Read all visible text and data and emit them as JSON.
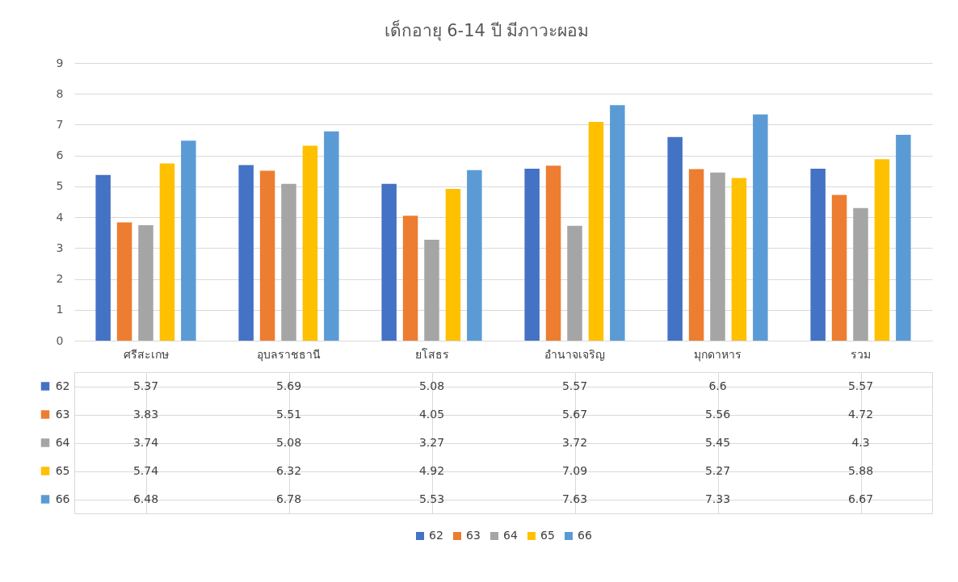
{
  "chart_data": {
    "type": "bar",
    "title": "เด็กอายุ 6-14 ปี มีภาวะผอม",
    "categories": [
      "ศรีสะเกษ",
      "อุบลราชธานี",
      "ยโสธร",
      "อำนาจเจริญ",
      "มุกดาหาร",
      "รวม"
    ],
    "series": [
      {
        "name": "62",
        "color": "#4472c4",
        "values": [
          5.37,
          5.69,
          5.08,
          5.57,
          6.6,
          5.57
        ]
      },
      {
        "name": "63",
        "color": "#ed7d31",
        "values": [
          3.83,
          5.51,
          4.05,
          5.67,
          5.56,
          4.72
        ]
      },
      {
        "name": "64",
        "color": "#a5a5a5",
        "values": [
          3.74,
          5.08,
          3.27,
          3.72,
          5.45,
          4.3
        ]
      },
      {
        "name": "65",
        "color": "#ffc000",
        "values": [
          5.74,
          6.32,
          4.92,
          7.09,
          5.27,
          5.88
        ]
      },
      {
        "name": "66",
        "color": "#5b9bd5",
        "values": [
          6.48,
          6.78,
          5.53,
          7.63,
          7.33,
          6.67
        ]
      }
    ],
    "ylim": [
      0,
      9
    ],
    "yticks": [
      0,
      1,
      2,
      3,
      4,
      5,
      6,
      7,
      8,
      9
    ],
    "grid": "y",
    "legend": "bottom",
    "data_labels": true
  }
}
